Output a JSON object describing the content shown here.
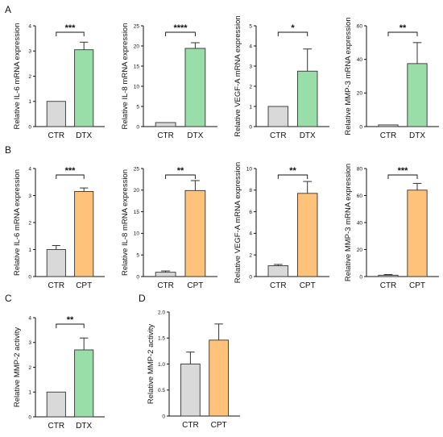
{
  "panels": [
    {
      "letter": "A"
    },
    {
      "letter": "B"
    },
    {
      "letter": "C"
    },
    {
      "letter": "D"
    }
  ],
  "chart_data": [
    {
      "panel": "A",
      "type": "bar",
      "ylabel": "Relative IL-6 mRNA expression",
      "categories": [
        "CTR",
        "DTX"
      ],
      "values": [
        1.0,
        3.05
      ],
      "errors": [
        0,
        0.3
      ],
      "ylim": [
        0,
        4
      ],
      "yticks": [
        "0",
        "1",
        "2",
        "3",
        "4"
      ],
      "significance": "***",
      "colors": [
        "#d9d9d9",
        "#99dda8"
      ]
    },
    {
      "panel": "A",
      "type": "bar",
      "ylabel": "Relative IL-8 mRNA expression",
      "categories": [
        "CTR",
        "DTX"
      ],
      "values": [
        1.0,
        19.4
      ],
      "errors": [
        0,
        1.4
      ],
      "ylim": [
        0,
        25
      ],
      "yticks": [
        "0",
        "5",
        "10",
        "15",
        "20",
        "25"
      ],
      "significance": "****",
      "colors": [
        "#d9d9d9",
        "#99dda8"
      ]
    },
    {
      "panel": "A",
      "type": "bar",
      "ylabel": "Relative VEGF-A mRNA expression",
      "categories": [
        "CTR",
        "DTX"
      ],
      "values": [
        1.0,
        2.75
      ],
      "errors": [
        0,
        1.1
      ],
      "ylim": [
        0,
        5
      ],
      "yticks": [
        "0",
        "1",
        "2",
        "3",
        "4",
        "5"
      ],
      "significance": "*",
      "colors": [
        "#d9d9d9",
        "#99dda8"
      ]
    },
    {
      "panel": "A",
      "type": "bar",
      "ylabel": "Relative MMP-3 mRNA expression",
      "categories": [
        "CTR",
        "DTX"
      ],
      "values": [
        1.0,
        37.5
      ],
      "errors": [
        0,
        12.5
      ],
      "ylim": [
        0,
        60
      ],
      "yticks": [
        "0",
        "20",
        "40",
        "60"
      ],
      "significance": "**",
      "colors": [
        "#d9d9d9",
        "#99dda8"
      ]
    },
    {
      "panel": "B",
      "type": "bar",
      "ylabel": "Relative IL-6 mRNA expression",
      "categories": [
        "CTR",
        "CPT"
      ],
      "values": [
        1.0,
        3.15
      ],
      "errors": [
        0.15,
        0.13
      ],
      "ylim": [
        0,
        4
      ],
      "yticks": [
        "0",
        "1",
        "2",
        "3",
        "4"
      ],
      "significance": "***",
      "colors": [
        "#d9d9d9",
        "#ffc27a"
      ]
    },
    {
      "panel": "B",
      "type": "bar",
      "ylabel": "Relative IL-8 mRNA expression",
      "categories": [
        "CTR",
        "CPT"
      ],
      "values": [
        1.0,
        19.9
      ],
      "errors": [
        0.3,
        2.3
      ],
      "ylim": [
        0,
        25
      ],
      "yticks": [
        "0",
        "5",
        "10",
        "15",
        "20",
        "25"
      ],
      "significance": "**",
      "colors": [
        "#d9d9d9",
        "#ffc27a"
      ]
    },
    {
      "panel": "B",
      "type": "bar",
      "ylabel": "Relative VEGF-A mRNA expression",
      "categories": [
        "CTR",
        "CPT"
      ],
      "values": [
        1.0,
        7.7
      ],
      "errors": [
        0.12,
        1.1
      ],
      "ylim": [
        0,
        10
      ],
      "yticks": [
        "0",
        "2",
        "4",
        "6",
        "8",
        "10"
      ],
      "significance": "**",
      "colors": [
        "#d9d9d9",
        "#ffc27a"
      ]
    },
    {
      "panel": "B",
      "type": "bar",
      "ylabel": "Relative MMP-3 mRNA expression",
      "categories": [
        "CTR",
        "CPT"
      ],
      "values": [
        1.0,
        64.0
      ],
      "errors": [
        0.5,
        5.0
      ],
      "ylim": [
        0,
        80
      ],
      "yticks": [
        "0",
        "20",
        "40",
        "60",
        "80"
      ],
      "significance": "***",
      "colors": [
        "#d9d9d9",
        "#ffc27a"
      ]
    },
    {
      "panel": "C",
      "type": "bar",
      "ylabel": "Relative MMP-2 activity",
      "categories": [
        "CTR",
        "DTX"
      ],
      "values": [
        1.0,
        2.7
      ],
      "errors": [
        0,
        0.48
      ],
      "ylim": [
        0,
        4
      ],
      "yticks": [
        "0",
        "1",
        "2",
        "3",
        "4"
      ],
      "significance": "**",
      "colors": [
        "#d9d9d9",
        "#99dda8"
      ]
    },
    {
      "panel": "D",
      "type": "bar",
      "ylabel": "Relative MMP-2 activity",
      "categories": [
        "CTR",
        "CPT"
      ],
      "values": [
        1.0,
        1.46
      ],
      "errors": [
        0.23,
        0.31
      ],
      "ylim": [
        0,
        2.0
      ],
      "yticks": [
        "0",
        "0.5",
        "1.0",
        "1.5",
        "2.0"
      ],
      "significance": "",
      "colors": [
        "#d9d9d9",
        "#ffc27a"
      ]
    }
  ]
}
